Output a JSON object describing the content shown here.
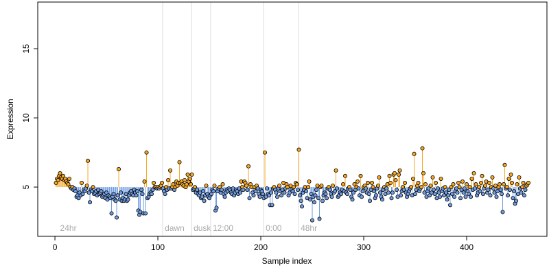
{
  "chart_data": {
    "type": "index-stem",
    "xlabel": "Sample index",
    "ylabel": "Expression",
    "xlim": [
      -16.7,
      478
    ],
    "ylim": [
      1.44,
      18.37
    ],
    "xticks": [
      0,
      100,
      200,
      300,
      400
    ],
    "yticks": [
      5,
      10,
      15
    ],
    "baseline": 5,
    "above_color": "#f5a623",
    "below_color": "#6f9be0",
    "annotations": [
      {
        "x": 3,
        "text": "24hr",
        "line": false
      },
      {
        "x": 104.7,
        "text": "dawn",
        "line": true
      },
      {
        "x": 132.7,
        "text": "dusk",
        "line": true
      },
      {
        "x": 151.3,
        "text": "12:00",
        "line": true
      },
      {
        "x": 202.7,
        "text": "0:00",
        "line": true
      },
      {
        "x": 236.7,
        "text": "48hr",
        "line": true
      }
    ],
    "series": [
      {
        "name": "Expression",
        "x": [
          1,
          2,
          3,
          4,
          5,
          6,
          7,
          8,
          9,
          10,
          11,
          12,
          13,
          14,
          15,
          16,
          17,
          18,
          19,
          20,
          21,
          22,
          23,
          24,
          25,
          26,
          27,
          28,
          29,
          30,
          31,
          32,
          33,
          34,
          35,
          36,
          37,
          38,
          39,
          40,
          41,
          42,
          43,
          44,
          45,
          46,
          47,
          48,
          49,
          50,
          51,
          52,
          53,
          54,
          55,
          56,
          57,
          58,
          59,
          60,
          61,
          62,
          63,
          64,
          65,
          66,
          67,
          68,
          69,
          70,
          71,
          72,
          73,
          74,
          75,
          76,
          77,
          78,
          79,
          80,
          81,
          82,
          83,
          84,
          85,
          86,
          87,
          88,
          89,
          90,
          91,
          92,
          93,
          94,
          95,
          96,
          97,
          98,
          99,
          100,
          101,
          102,
          103,
          104,
          105,
          106,
          107,
          108,
          109,
          110,
          111,
          112,
          113,
          114,
          115,
          116,
          117,
          118,
          119,
          120,
          121,
          122,
          123,
          124,
          125,
          126,
          127,
          128,
          129,
          130,
          131,
          132,
          133,
          134,
          135,
          136,
          137,
          138,
          139,
          140,
          141,
          142,
          143,
          144,
          145,
          146,
          147,
          148,
          149,
          150,
          151,
          152,
          153,
          154,
          155,
          156,
          157,
          158,
          159,
          160,
          161,
          162,
          163,
          164,
          165,
          166,
          167,
          168,
          169,
          170,
          171,
          172,
          173,
          174,
          175,
          176,
          177,
          178,
          179,
          180,
          181,
          182,
          183,
          184,
          185,
          186,
          187,
          188,
          189,
          190,
          191,
          192,
          193,
          194,
          195,
          196,
          197,
          198,
          199,
          200,
          201,
          202,
          203,
          204,
          205,
          206,
          207,
          208,
          209,
          210,
          211,
          212,
          213,
          214,
          215,
          216,
          217,
          218,
          219,
          220,
          221,
          222,
          223,
          224,
          225,
          226,
          227,
          228,
          229,
          230,
          231,
          232,
          233,
          234,
          235,
          236,
          237,
          238,
          239,
          240,
          241,
          242,
          243,
          244,
          245,
          246,
          247,
          248,
          249,
          250,
          251,
          252,
          253,
          254,
          255,
          256,
          257,
          258,
          259,
          260,
          261,
          262,
          263,
          264,
          265,
          266,
          267,
          268,
          269,
          270,
          271,
          272,
          273,
          274,
          275,
          276,
          277,
          278,
          279,
          280,
          281,
          282,
          283,
          284,
          285,
          286,
          287,
          288,
          289,
          290,
          291,
          292,
          293,
          294,
          295,
          296,
          297,
          298,
          299,
          300,
          301,
          302,
          303,
          304,
          305,
          306,
          307,
          308,
          309,
          310,
          311,
          312,
          313,
          314,
          315,
          316,
          317,
          318,
          319,
          320,
          321,
          322,
          323,
          324,
          325,
          326,
          327,
          328,
          329,
          330,
          331,
          332,
          333,
          334,
          335,
          336,
          337,
          338,
          339,
          340,
          341,
          342,
          343,
          344,
          345,
          346,
          347,
          348,
          349,
          350,
          351,
          352,
          353,
          354,
          355,
          356,
          357,
          358,
          359,
          360,
          361,
          362,
          363,
          364,
          365,
          366,
          367,
          368,
          369,
          370,
          371,
          372,
          373,
          374,
          375,
          376,
          377,
          378,
          379,
          380,
          381,
          382,
          383,
          384,
          385,
          386,
          387,
          388,
          389,
          390,
          391,
          392,
          393,
          394,
          395,
          396,
          397,
          398,
          399,
          400,
          401,
          402,
          403,
          404,
          405,
          406,
          407,
          408,
          409,
          410,
          411,
          412,
          413,
          414,
          415,
          416,
          417,
          418,
          419,
          420,
          421,
          422,
          423,
          424,
          425,
          426,
          427,
          428,
          429,
          430,
          431,
          432,
          433,
          434,
          435,
          436,
          437,
          438,
          439,
          440,
          441,
          442,
          443,
          444,
          445,
          446,
          447,
          448,
          449,
          450,
          451,
          452,
          453,
          454,
          455,
          456,
          457,
          458,
          459,
          460
        ],
        "values": [
          5.3,
          5.6,
          5.5,
          5.8,
          6.0,
          5.7,
          5.6,
          5.8,
          5.5,
          5.6,
          5.4,
          5.3,
          5.2,
          5.6,
          5.0,
          4.9,
          5.0,
          4.8,
          4.9,
          4.7,
          4.3,
          4.4,
          4.2,
          4.6,
          4.4,
          5.3,
          4.5,
          4.8,
          4.7,
          4.9,
          5.1,
          6.9,
          4.6,
          3.9,
          4.8,
          4.7,
          5.0,
          4.5,
          4.6,
          4.7,
          4.4,
          4.8,
          4.5,
          4.6,
          4.7,
          4.3,
          4.4,
          4.5,
          4.2,
          4.6,
          4.1,
          4.4,
          4.3,
          4.2,
          3.1,
          4.3,
          4.5,
          4.1,
          4.0,
          2.8,
          4.4,
          6.3,
          4.1,
          4.6,
          4.0,
          4.2,
          4.0,
          4.1,
          4.5,
          4.0,
          4.1,
          4.4,
          4.6,
          4.7,
          4.5,
          4.4,
          4.8,
          4.6,
          4.4,
          4.7,
          3.3,
          3.0,
          3.2,
          4.8,
          4.5,
          3.1,
          5.4,
          3.1,
          7.5,
          4.2,
          4.3,
          4.5,
          4.6,
          4.5,
          4.8,
          5.3,
          5.0,
          5.0,
          4.9,
          5.0,
          4.9,
          5.0,
          5.1,
          5.3,
          4.9,
          4.7,
          4.5,
          5.0,
          4.8,
          5.5,
          4.9,
          6.2,
          4.9,
          5.0,
          5.2,
          4.8,
          5.0,
          5.4,
          5.1,
          5.3,
          6.8,
          5.3,
          5.4,
          5.2,
          5.1,
          5.5,
          5.0,
          5.2,
          5.9,
          5.4,
          5.6,
          5.2,
          5.9,
          4.8,
          4.9,
          5.0,
          4.6,
          4.8,
          4.5,
          4.4,
          4.6,
          4.2,
          4.3,
          4.7,
          4.0,
          4.4,
          5.1,
          4.5,
          4.3,
          4.2,
          4.4,
          4.5,
          4.8,
          4.7,
          5.1,
          3.3,
          3.5,
          4.7,
          4.9,
          5.0,
          4.6,
          4.8,
          5.2,
          4.5,
          4.3,
          4.6,
          4.8,
          4.7,
          4.9,
          4.8,
          4.6,
          4.5,
          4.9,
          4.4,
          4.6,
          4.8,
          4.7,
          4.5,
          4.9,
          4.6,
          5.4,
          5.0,
          4.8,
          5.4,
          5.3,
          5.1,
          4.8,
          6.5,
          4.2,
          5.2,
          5.0,
          4.6,
          4.4,
          5.0,
          4.7,
          5.1,
          4.9,
          4.5,
          4.3,
          4.8,
          4.7,
          4.5,
          4.2,
          7.5,
          4.3,
          4.9,
          4.5,
          4.4,
          3.7,
          4.6,
          3.7,
          4.9,
          5.0,
          4.8,
          4.6,
          4.3,
          4.9,
          5.1,
          4.7,
          4.4,
          4.8,
          5.3,
          4.6,
          4.9,
          5.2,
          5.0,
          4.4,
          4.6,
          5.1,
          4.8,
          4.7,
          5.0,
          4.5,
          5.3,
          5.2,
          4.8,
          7.7,
          4.4,
          4.0,
          3.6,
          4.6,
          4.8,
          5.0,
          4.7,
          4.2,
          5.0,
          5.4,
          4.1,
          4.5,
          2.6,
          4.3,
          3.9,
          4.4,
          4.8,
          5.1,
          4.2,
          2.7,
          5.0,
          5.1,
          4.0,
          4.4,
          4.6,
          4.5,
          4.2,
          4.9,
          5.0,
          4.8,
          4.5,
          4.3,
          5.1,
          4.6,
          4.7,
          6.2,
          4.9,
          4.3,
          4.4,
          4.6,
          4.5,
          4.8,
          5.2,
          4.7,
          5.8,
          4.6,
          4.5,
          4.9,
          5.0,
          4.8,
          4.3,
          4.1,
          4.6,
          5.2,
          4.8,
          5.0,
          5.4,
          4.9,
          4.4,
          5.8,
          4.3,
          4.7,
          5.0,
          5.1,
          4.9,
          4.6,
          5.3,
          4.5,
          4.0,
          4.8,
          5.3,
          5.0,
          4.7,
          4.2,
          4.4,
          4.9,
          5.1,
          5.7,
          4.6,
          4.3,
          4.1,
          4.8,
          5.0,
          4.5,
          4.9,
          5.2,
          4.6,
          5.8,
          5.3,
          4.2,
          4.6,
          5.9,
          6.0,
          5.5,
          4.8,
          4.3,
          5.9,
          6.2,
          4.4,
          4.7,
          5.0,
          4.8,
          5.3,
          4.6,
          4.3,
          4.5,
          4.7,
          4.9,
          5.0,
          4.4,
          5.6,
          7.4,
          4.5,
          4.8,
          5.1,
          5.3,
          4.7,
          4.9,
          5.0,
          7.8,
          6.0,
          4.6,
          5.2,
          4.3,
          4.7,
          4.9,
          4.4,
          5.1,
          4.6,
          5.7,
          4.8,
          4.5,
          5.3,
          4.2,
          4.9,
          4.6,
          4.3,
          5.6,
          4.7,
          4.9,
          4.4,
          5.0,
          4.6,
          4.1,
          4.4,
          4.8,
          3.7,
          5.0,
          4.5,
          5.2,
          4.3,
          4.7,
          4.9,
          4.6,
          5.3,
          5.0,
          4.2,
          4.8,
          5.4,
          4.6,
          4.9,
          4.3,
          5.2,
          4.7,
          4.5,
          5.0,
          4.3,
          5.6,
          4.8,
          6.0,
          4.9,
          5.2,
          4.4,
          4.6,
          5.0,
          4.7,
          5.3,
          5.8,
          4.5,
          4.9,
          5.1,
          5.4,
          4.6,
          4.8,
          5.3,
          4.4,
          5.0,
          5.7,
          4.9,
          4.6,
          5.1,
          4.3,
          4.7,
          5.0,
          5.2,
          4.8,
          4.5,
          3.2,
          5.2,
          6.6,
          4.9,
          5.0,
          4.4,
          5.6,
          4.8,
          5.9,
          5.3,
          4.2,
          4.7,
          3.8,
          4.0,
          5.2,
          4.5,
          5.7,
          4.9,
          4.6,
          5.0,
          5.3,
          4.4,
          4.8,
          5.1,
          5.2,
          5.3
        ]
      }
    ]
  }
}
